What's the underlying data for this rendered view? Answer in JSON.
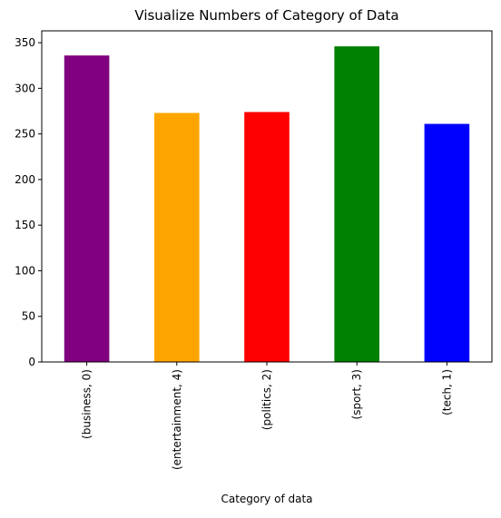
{
  "chart_data": {
    "type": "bar",
    "title": "Visualize Numbers of Category of Data",
    "xlabel": "Category of data",
    "ylabel": "",
    "categories": [
      "(business, 0)",
      "(entertainment, 4)",
      "(politics, 2)",
      "(sport, 3)",
      "(tech, 1)"
    ],
    "values": [
      336,
      273,
      274,
      346,
      261
    ],
    "colors": [
      "#800080",
      "#ffa500",
      "#ff0000",
      "#008000",
      "#0000ff"
    ],
    "ylim": [
      0,
      363
    ],
    "yticks": [
      0,
      50,
      100,
      150,
      200,
      250,
      300,
      350
    ],
    "grid": false,
    "legend": "none"
  }
}
